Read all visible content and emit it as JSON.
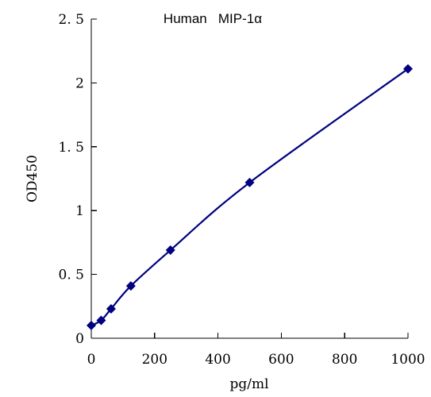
{
  "chart_data": {
    "type": "line",
    "title": "Human   MIP-1α",
    "xlabel": "pg/ml",
    "ylabel": "OD450",
    "xlim": [
      0,
      1000
    ],
    "ylim": [
      0,
      2.5
    ],
    "x_ticks": [
      0,
      200,
      400,
      600,
      800,
      1000
    ],
    "x_tick_labels": [
      "0",
      "200",
      "400",
      "600",
      "800",
      "1000"
    ],
    "y_ticks": [
      0,
      0.5,
      1,
      1.5,
      2,
      2.5
    ],
    "y_tick_labels": [
      "0",
      "0. 5",
      "1",
      "1. 5",
      "2",
      "2. 5"
    ],
    "grid": false,
    "legend": "none",
    "series": [
      {
        "x": [
          0,
          31.25,
          62.5,
          125,
          250,
          500,
          1000
        ],
        "y": [
          0.1,
          0.14,
          0.23,
          0.41,
          0.69,
          1.22,
          2.11
        ],
        "color": "#000080",
        "marker": "diamond"
      }
    ]
  }
}
